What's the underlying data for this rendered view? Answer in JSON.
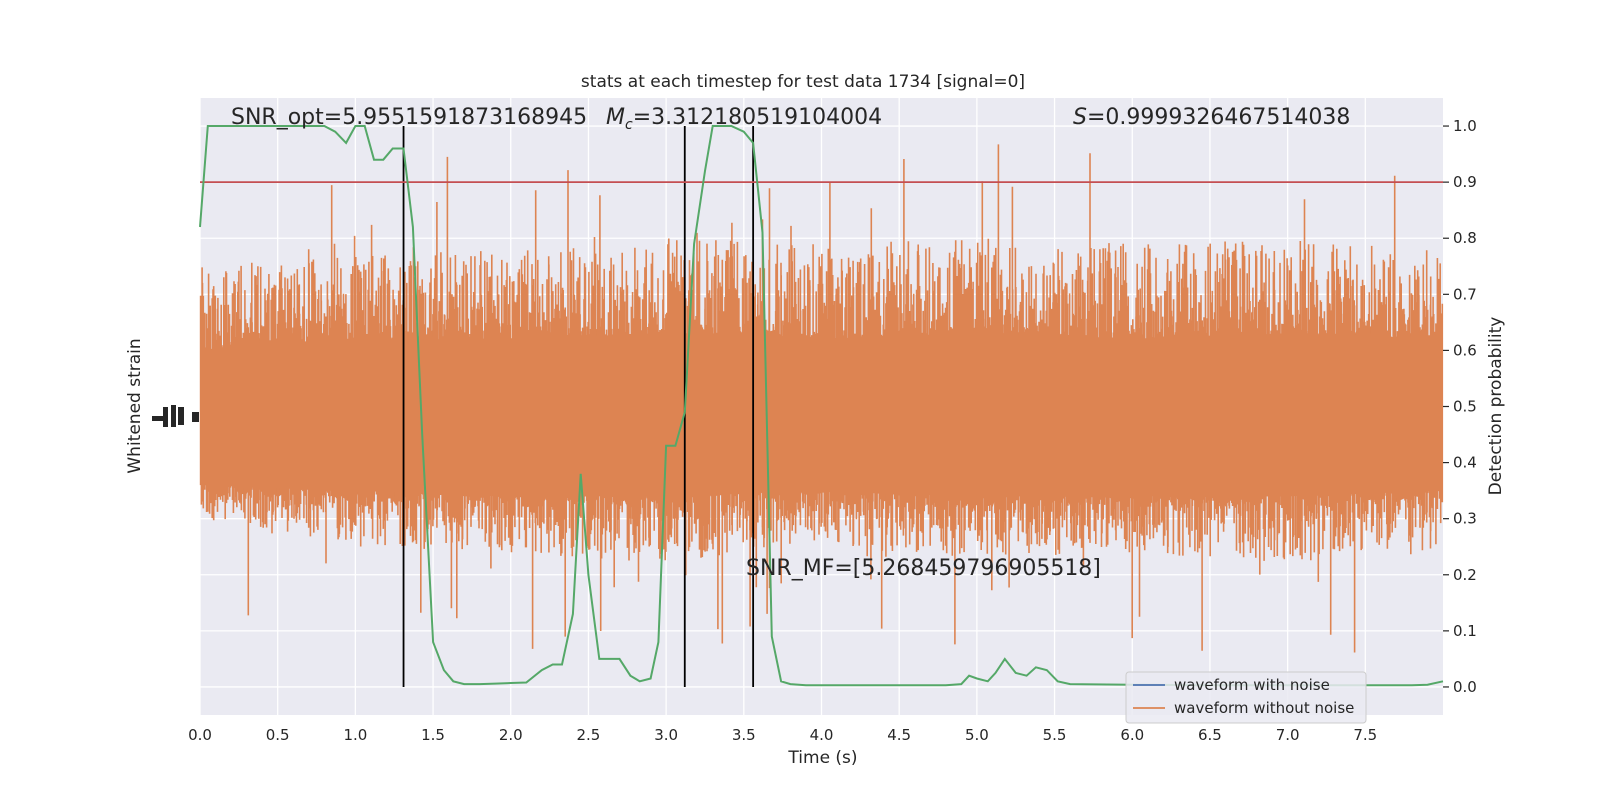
{
  "chart_data": {
    "type": "line",
    "title": "stats at each timestep for test data 1734 [signal=0]",
    "xlabel": "Time (s)",
    "ylabel_left": "Whitened strain",
    "ylabel_right": "Detection probability",
    "xlim": [
      0,
      8
    ],
    "ylim_right": [
      -0.05,
      1.05
    ],
    "x_ticks": [
      "0.0",
      "0.5",
      "1.0",
      "1.5",
      "2.0",
      "2.5",
      "3.0",
      "3.5",
      "4.0",
      "4.5",
      "5.0",
      "5.5",
      "6.0",
      "6.5",
      "7.0",
      "7.5"
    ],
    "y_ticks_right": [
      "0.0",
      "0.1",
      "0.2",
      "0.3",
      "0.4",
      "0.5",
      "0.6",
      "0.7",
      "0.8",
      "0.9",
      "1.0"
    ],
    "grid": true,
    "legend_position": "lower-right",
    "threshold": 0.9,
    "vertical_markers": [
      1.31,
      3.12,
      3.56
    ],
    "annotations": {
      "snr_opt": "SNR_opt=5.9551591873168945",
      "mc_symbol": "M",
      "mc_sub": "c",
      "mc_value": "=3.312180519104004",
      "s_symbol": "S",
      "s_value": "=0.9999326467514038",
      "snr_mf": "SNR_MF=[5.268459796905518]"
    },
    "series": [
      {
        "name": "waveform with noise",
        "color": "#4c72b0"
      },
      {
        "name": "waveform without noise",
        "color": "#dd8452"
      }
    ],
    "detection_probability": {
      "color": "#55a868",
      "x": [
        0,
        0.05,
        0.1,
        0.2,
        0.3,
        0.4,
        0.5,
        0.6,
        0.7,
        0.8,
        0.87,
        0.94,
        1.0,
        1.06,
        1.12,
        1.18,
        1.24,
        1.31,
        1.37,
        1.43,
        1.5,
        1.57,
        1.63,
        1.7,
        1.8,
        1.9,
        2.0,
        2.1,
        2.2,
        2.27,
        2.33,
        2.4,
        2.45,
        2.5,
        2.57,
        2.63,
        2.7,
        2.77,
        2.83,
        2.9,
        2.95,
        3.0,
        3.06,
        3.12,
        3.18,
        3.25,
        3.3,
        3.35,
        3.42,
        3.5,
        3.56,
        3.62,
        3.68,
        3.74,
        3.8,
        3.9,
        4.0,
        4.5,
        4.8,
        4.9,
        4.95,
        5.0,
        5.07,
        5.12,
        5.18,
        5.25,
        5.32,
        5.38,
        5.45,
        5.52,
        5.6,
        6.0,
        6.5,
        7.0,
        7.5,
        7.8,
        7.9,
        8.0
      ],
      "y": [
        0.82,
        1.0,
        1.0,
        1.0,
        1.0,
        1.0,
        1.0,
        1.0,
        1.0,
        1.0,
        0.99,
        0.97,
        1.0,
        1.0,
        0.94,
        0.94,
        0.96,
        0.96,
        0.82,
        0.45,
        0.08,
        0.03,
        0.01,
        0.005,
        0.005,
        0.006,
        0.007,
        0.008,
        0.03,
        0.04,
        0.04,
        0.13,
        0.38,
        0.2,
        0.05,
        0.05,
        0.05,
        0.02,
        0.01,
        0.015,
        0.08,
        0.43,
        0.43,
        0.49,
        0.79,
        0.92,
        1.0,
        1.0,
        1.0,
        0.99,
        0.97,
        0.81,
        0.09,
        0.01,
        0.005,
        0.003,
        0.003,
        0.003,
        0.003,
        0.005,
        0.02,
        0.015,
        0.01,
        0.025,
        0.05,
        0.025,
        0.02,
        0.035,
        0.03,
        0.01,
        0.005,
        0.004,
        0.003,
        0.003,
        0.003,
        0.003,
        0.004,
        0.01
      ]
    },
    "strain_envelope": {
      "x": [
        0,
        1,
        2,
        3,
        4,
        5,
        6,
        7,
        8
      ],
      "upper": [
        0.75,
        0.77,
        0.78,
        0.8,
        0.79,
        0.8,
        0.79,
        0.8,
        0.78
      ],
      "lower": [
        0.3,
        0.25,
        0.24,
        0.22,
        0.25,
        0.23,
        0.24,
        0.22,
        0.24
      ],
      "core_upper": [
        0.6,
        0.62,
        0.62,
        0.63,
        0.62,
        0.63,
        0.62,
        0.63,
        0.62
      ],
      "core_lower": [
        0.36,
        0.35,
        0.34,
        0.34,
        0.35,
        0.34,
        0.34,
        0.34,
        0.35
      ]
    }
  }
}
